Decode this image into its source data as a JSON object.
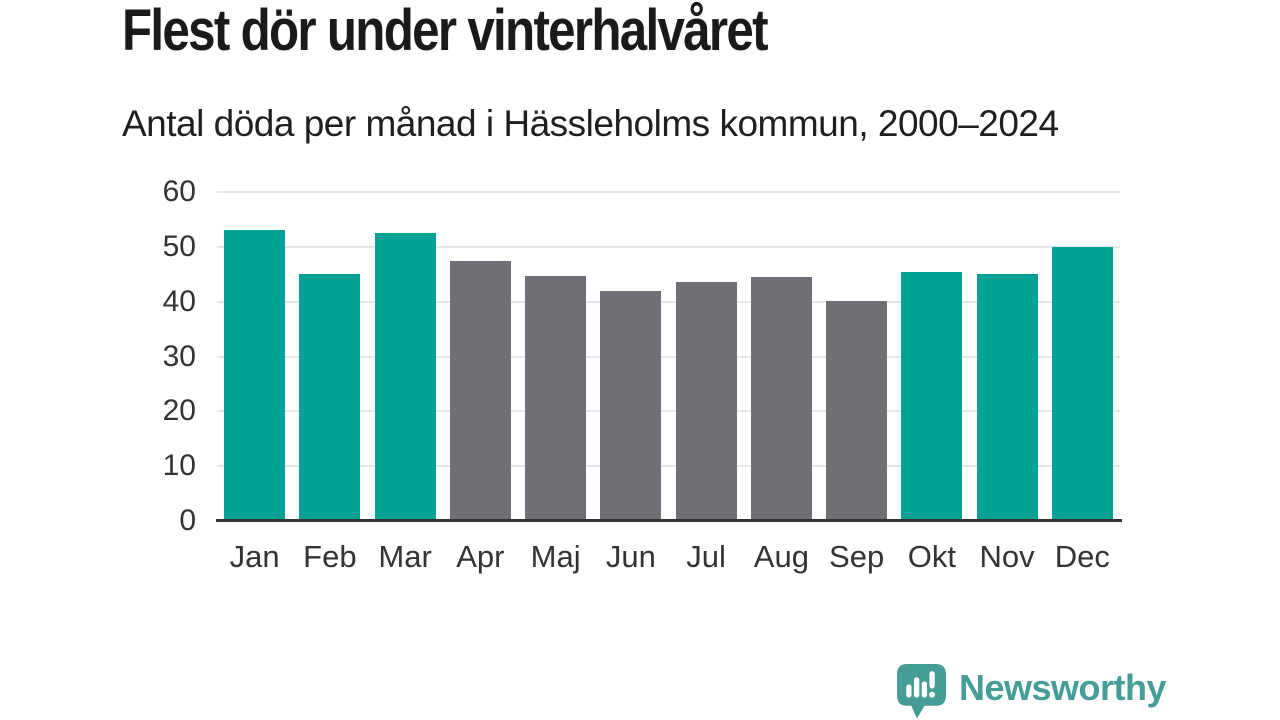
{
  "chart_data": {
    "type": "bar",
    "title": "Flest dör under vinterhalvåret",
    "subtitle": "Antal döda per månad i Hässleholms kommun, 2000–2024",
    "categories": [
      "Jan",
      "Feb",
      "Mar",
      "Apr",
      "Maj",
      "Jun",
      "Jul",
      "Aug",
      "Sep",
      "Okt",
      "Nov",
      "Dec"
    ],
    "values": [
      53,
      45,
      52.5,
      47.5,
      44.7,
      42,
      43.5,
      44.5,
      40.2,
      45.5,
      45,
      50
    ],
    "bar_colors": [
      "#00a296",
      "#00a296",
      "#00a296",
      "#706f76",
      "#706f76",
      "#706f76",
      "#706f76",
      "#706f76",
      "#706f76",
      "#00a296",
      "#00a296",
      "#00a296"
    ],
    "highlight_color": "#00a296",
    "muted_color": "#706f76",
    "xlabel": "",
    "ylabel": "",
    "ylim": [
      0,
      60
    ],
    "yticks": [
      0,
      10,
      20,
      30,
      40,
      50,
      60
    ],
    "grid": true,
    "legend_position": "none"
  },
  "branding": {
    "logo_text": "Newsworthy",
    "logo_color": "#449d96",
    "logo_icon": "newsworthy-speech-bubble-bar-chart-icon"
  },
  "colors": {
    "title_text": "#1a1a1a",
    "axis_text": "#333333",
    "gridline": "#e7e7e7",
    "axis_line": "#333333",
    "background": "#ffffff"
  }
}
